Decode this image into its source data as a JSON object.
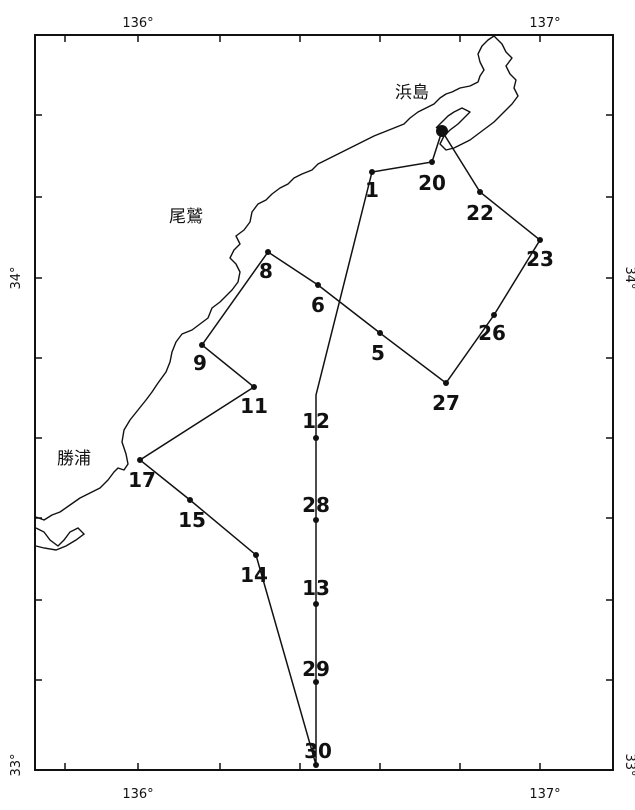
{
  "map": {
    "axis_labels": {
      "lon_top": [
        "136°",
        "137°"
      ],
      "lon_bottom": [
        "136°",
        "137°"
      ],
      "lat_left": [
        "34°",
        "33°"
      ],
      "lat_right": [
        "34°",
        "33°"
      ]
    },
    "place_names": {
      "hamajima": "浜島",
      "owase": "尾鷲",
      "katsuura": "勝浦"
    },
    "stations": [
      {
        "id": "1",
        "label": "1"
      },
      {
        "id": "20",
        "label": "20"
      },
      {
        "id": "22",
        "label": "22"
      },
      {
        "id": "23",
        "label": "23"
      },
      {
        "id": "26",
        "label": "26"
      },
      {
        "id": "27",
        "label": "27"
      },
      {
        "id": "5",
        "label": "5"
      },
      {
        "id": "6",
        "label": "6"
      },
      {
        "id": "8",
        "label": "8"
      },
      {
        "id": "9",
        "label": "9"
      },
      {
        "id": "11",
        "label": "11"
      },
      {
        "id": "17",
        "label": "17"
      },
      {
        "id": "15",
        "label": "15"
      },
      {
        "id": "14",
        "label": "14"
      },
      {
        "id": "12",
        "label": "12"
      },
      {
        "id": "28",
        "label": "28"
      },
      {
        "id": "13",
        "label": "13"
      },
      {
        "id": "29",
        "label": "29"
      },
      {
        "id": "30",
        "label": "30"
      }
    ],
    "colors": {
      "ink": "#111111",
      "background": "#ffffff"
    }
  }
}
